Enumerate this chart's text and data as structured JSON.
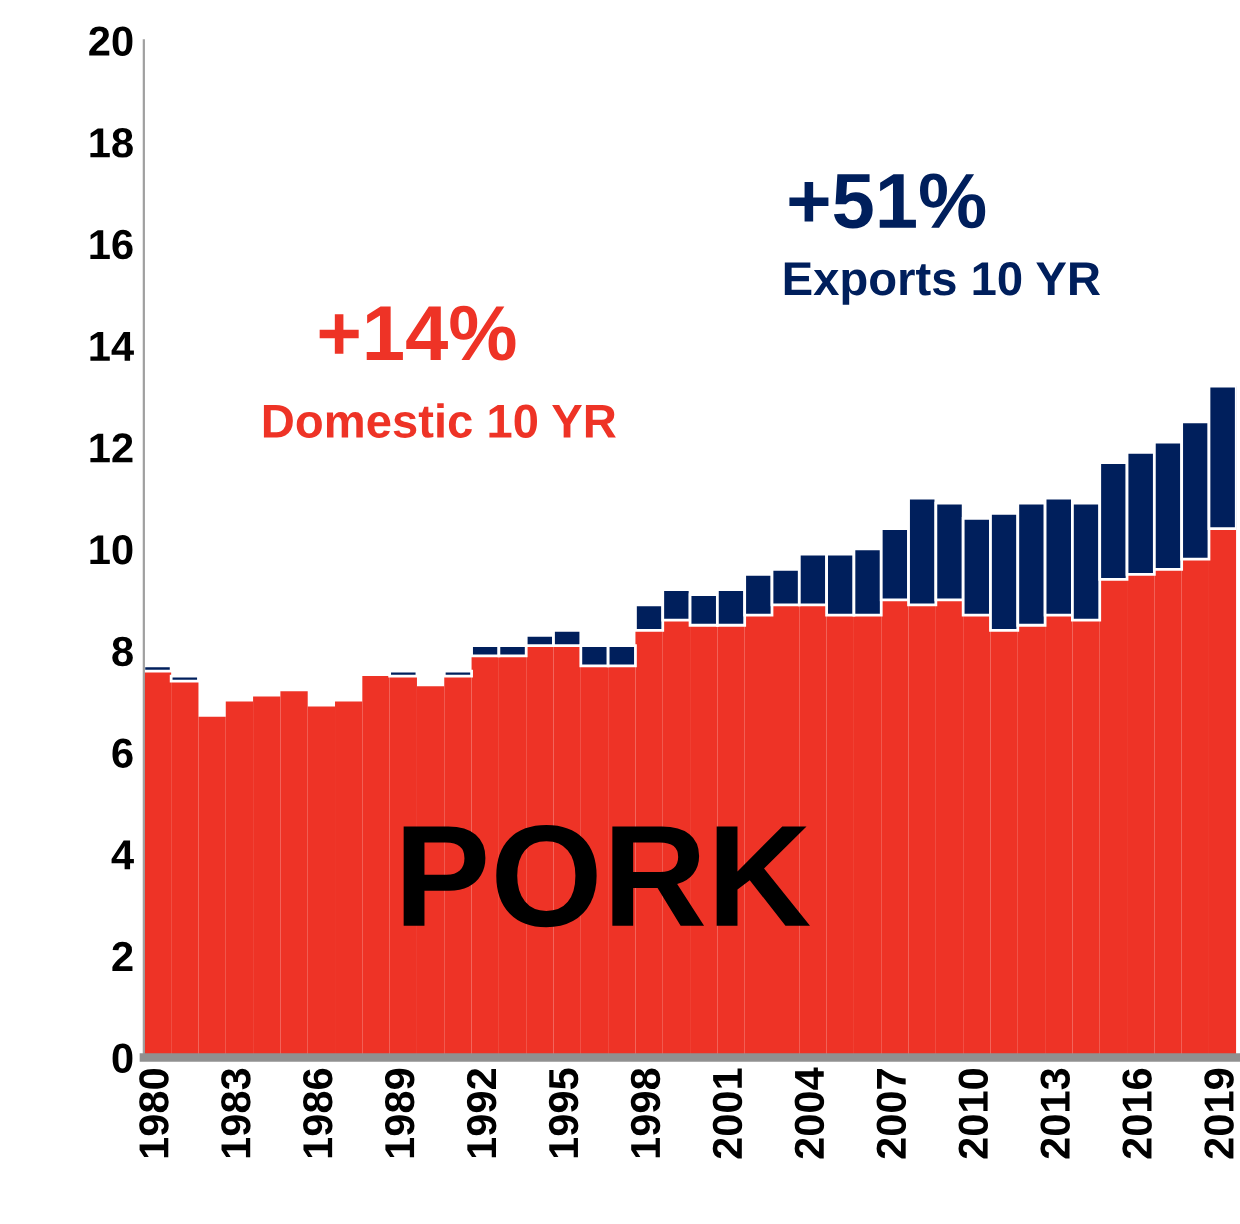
{
  "chart_data": {
    "type": "bar",
    "stacked": true,
    "categories": [
      "1980",
      null,
      null,
      "1983",
      null,
      null,
      "1986",
      null,
      null,
      "1989",
      null,
      null,
      "1992",
      null,
      null,
      "1995",
      null,
      null,
      "1998",
      null,
      null,
      "2001",
      null,
      null,
      "2004",
      null,
      null,
      "2007",
      null,
      null,
      "2010",
      null,
      null,
      "2013",
      null,
      null,
      "2016",
      null,
      null,
      "2019"
    ],
    "series": [
      {
        "color": "#ee3326",
        "values": [
          7.6,
          7.4,
          6.7,
          7.0,
          7.1,
          7.2,
          6.9,
          7.0,
          7.5,
          7.5,
          7.3,
          7.5,
          7.9,
          7.9,
          8.1,
          8.1,
          7.7,
          7.7,
          8.4,
          8.6,
          8.5,
          8.5,
          8.7,
          8.9,
          8.9,
          8.7,
          8.7,
          9.0,
          8.9,
          9.0,
          8.7,
          8.4,
          8.5,
          8.7,
          8.6,
          9.4,
          9.5,
          9.6,
          9.8,
          10.4
        ]
      },
      {
        "color": "#001f5c",
        "values": [
          0.1,
          0.1,
          null,
          null,
          null,
          null,
          null,
          null,
          null,
          0.1,
          null,
          0.1,
          0.2,
          0.2,
          0.2,
          0.3,
          0.4,
          0.4,
          0.5,
          0.6,
          0.6,
          0.7,
          0.8,
          0.7,
          1.0,
          1.2,
          1.3,
          1.4,
          2.1,
          1.9,
          1.9,
          2.3,
          2.4,
          2.3,
          2.3,
          2.3,
          2.4,
          2.5,
          2.7,
          2.8
        ]
      }
    ],
    "ylim": [
      0,
      20
    ],
    "yticks": [
      0,
      2,
      4,
      6,
      8,
      10,
      12,
      14,
      16,
      18,
      20
    ],
    "grid": false,
    "legend": false,
    "annotations": [
      "+14%",
      "Domestic 10 YR",
      "+51%",
      "Exports 10 YR",
      "PORK"
    ]
  }
}
